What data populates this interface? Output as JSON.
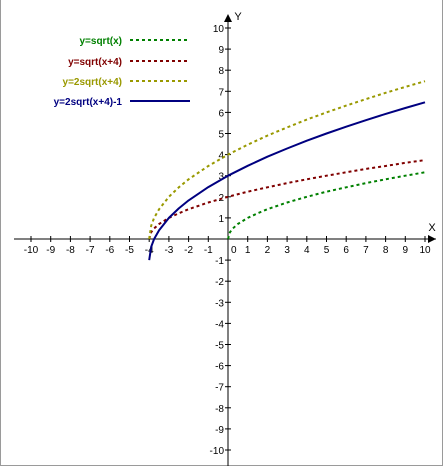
{
  "chart_data": {
    "type": "line",
    "title": "",
    "xlabel": "X",
    "ylabel": "Y",
    "xlim": [
      -10,
      10
    ],
    "ylim": [
      -10,
      10
    ],
    "grid": false,
    "legend_placement": "top-left",
    "x_ticks": [
      "-10",
      "-9",
      "-8",
      "-7",
      "-6",
      "-5",
      "-4",
      "-3",
      "-2",
      "-1",
      "0",
      "1",
      "2",
      "3",
      "4",
      "5",
      "6",
      "7",
      "8",
      "9",
      "10"
    ],
    "y_ticks": [
      "10",
      "9",
      "8",
      "7",
      "6",
      "5",
      "4",
      "3",
      "2",
      "1",
      "-1",
      "-2",
      "-3",
      "-4",
      "-5",
      "-6",
      "-7",
      "-8",
      "-9",
      "-10"
    ],
    "series": [
      {
        "name": "y=sqrt(x)",
        "color": "#008000",
        "style": "dashed",
        "x": [
          0,
          0.1,
          0.25,
          0.5,
          1,
          1.5,
          2,
          3,
          4,
          5,
          6,
          7,
          8,
          9,
          10
        ],
        "y": [
          0,
          0.32,
          0.5,
          0.71,
          1,
          1.22,
          1.41,
          1.73,
          2,
          2.24,
          2.45,
          2.65,
          2.83,
          3,
          3.16
        ]
      },
      {
        "name": "y=sqrt(x+4)",
        "color": "#800000",
        "style": "dashed",
        "x": [
          -4,
          -3.9,
          -3.75,
          -3.5,
          -3,
          -2.5,
          -2,
          -1,
          0,
          1,
          2,
          3,
          4,
          5,
          6,
          7,
          8,
          9,
          10
        ],
        "y": [
          0,
          0.32,
          0.5,
          0.71,
          1,
          1.22,
          1.41,
          1.73,
          2,
          2.24,
          2.45,
          2.65,
          2.83,
          3,
          3.16,
          3.32,
          3.46,
          3.61,
          3.74
        ]
      },
      {
        "name": "y=2sqrt(x+4)",
        "color": "#999900",
        "style": "dashed",
        "x": [
          -4,
          -3.9,
          -3.75,
          -3.5,
          -3,
          -2.5,
          -2,
          -1,
          0,
          1,
          2,
          3,
          4,
          5,
          6,
          7,
          8,
          9,
          10
        ],
        "y": [
          0,
          0.63,
          1,
          1.41,
          2,
          2.45,
          2.83,
          3.46,
          4,
          4.47,
          4.9,
          5.29,
          5.66,
          6,
          6.32,
          6.63,
          6.93,
          7.21,
          7.48
        ]
      },
      {
        "name": "y=2sqrt(x+4)-1",
        "color": "#000080",
        "style": "solid",
        "x": [
          -4,
          -3.9,
          -3.75,
          -3.5,
          -3,
          -2.5,
          -2,
          -1,
          0,
          1,
          2,
          3,
          4,
          5,
          6,
          7,
          8,
          9,
          10
        ],
        "y": [
          -1,
          -0.37,
          0,
          0.41,
          1,
          1.45,
          1.83,
          2.46,
          3,
          3.47,
          3.9,
          4.29,
          4.66,
          5,
          5.32,
          5.63,
          5.93,
          6.21,
          6.48
        ]
      }
    ]
  }
}
